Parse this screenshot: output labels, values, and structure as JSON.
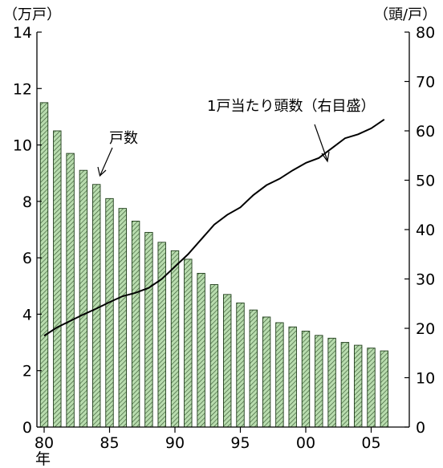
{
  "chart_data": {
    "type": "bar",
    "left_unit": "（万戸）",
    "right_unit": "（頭/戸）",
    "x_suffix": "年",
    "x_ticks": [
      {
        "year": 1980,
        "label": "80"
      },
      {
        "year": 1985,
        "label": "85"
      },
      {
        "year": 1990,
        "label": "90"
      },
      {
        "year": 1995,
        "label": "95"
      },
      {
        "year": 2000,
        "label": "00"
      },
      {
        "year": 2005,
        "label": "05"
      }
    ],
    "ylim_left": [
      0,
      14
    ],
    "ylim_right": [
      0,
      80
    ],
    "left_ticks": [
      "0",
      "2",
      "4",
      "6",
      "8",
      "10",
      "12",
      "14"
    ],
    "right_ticks": [
      "0",
      "10",
      "20",
      "30",
      "40",
      "50",
      "60",
      "70",
      "80"
    ],
    "years": [
      1980,
      1981,
      1982,
      1983,
      1984,
      1985,
      1986,
      1987,
      1988,
      1989,
      1990,
      1991,
      1992,
      1993,
      1994,
      1995,
      1996,
      1997,
      1998,
      1999,
      2000,
      2001,
      2002,
      2003,
      2004,
      2005,
      2006
    ],
    "series": [
      {
        "name": "戸数",
        "axis": "left",
        "kind": "bar",
        "color": "#a8d4a0",
        "values": [
          11.5,
          10.5,
          9.7,
          9.1,
          8.6,
          8.1,
          7.75,
          7.3,
          6.9,
          6.55,
          6.25,
          5.95,
          5.45,
          5.05,
          4.7,
          4.4,
          4.15,
          3.9,
          3.7,
          3.55,
          3.4,
          3.25,
          3.15,
          3.0,
          2.9,
          2.8,
          2.7
        ]
      },
      {
        "name": "1戸当たり頭数(右目盛)",
        "axis": "right",
        "kind": "line",
        "color": "#000000",
        "values": [
          18.5,
          20.2,
          21.5,
          22.8,
          24.0,
          25.3,
          26.5,
          27.2,
          28.2,
          30.0,
          32.5,
          35.0,
          38.0,
          41.0,
          43.0,
          44.5,
          47.0,
          49.0,
          50.3,
          52.0,
          53.5,
          54.5,
          56.5,
          58.5,
          59.3,
          60.5,
          62.3
        ]
      }
    ],
    "annotations": [
      {
        "text": "戸数",
        "target": "bar",
        "year": 1984
      },
      {
        "text": "1戸当たり頭数（右目盛）",
        "target": "line",
        "year": 2000
      }
    ]
  }
}
